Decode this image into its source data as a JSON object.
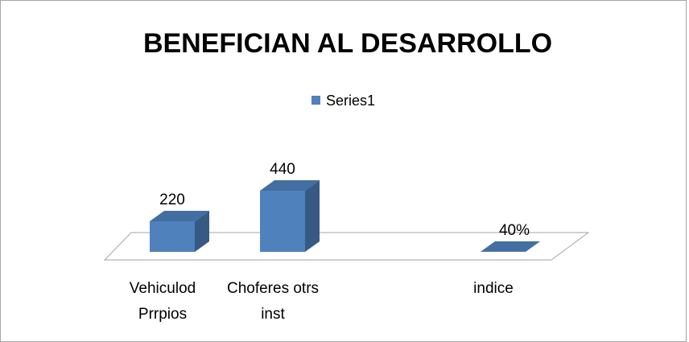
{
  "chart_data": {
    "type": "bar3d",
    "title": "BENEFICIAN AL DESARROLLO",
    "categories": [
      "Vehiculod Prrpios",
      "Choferes otrs inst",
      null,
      "indice"
    ],
    "series": [
      {
        "name": "Series1",
        "color": "#4f81bd",
        "values": [
          220,
          440,
          null,
          0.4
        ],
        "value_labels": [
          "220",
          "440",
          null,
          "40%"
        ]
      }
    ],
    "legend": "top"
  }
}
